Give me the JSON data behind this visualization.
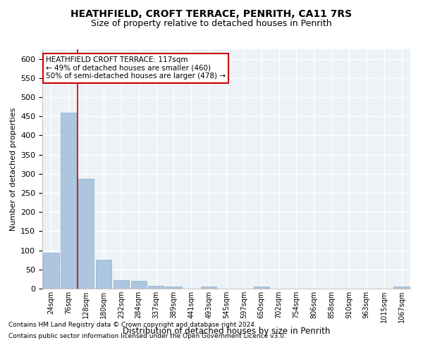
{
  "title": "HEATHFIELD, CROFT TERRACE, PENRITH, CA11 7RS",
  "subtitle": "Size of property relative to detached houses in Penrith",
  "xlabel": "Distribution of detached houses by size in Penrith",
  "ylabel": "Number of detached properties",
  "categories": [
    "24sqm",
    "76sqm",
    "128sqm",
    "180sqm",
    "232sqm",
    "284sqm",
    "337sqm",
    "389sqm",
    "441sqm",
    "493sqm",
    "545sqm",
    "597sqm",
    "650sqm",
    "702sqm",
    "754sqm",
    "806sqm",
    "858sqm",
    "910sqm",
    "963sqm",
    "1015sqm",
    "1067sqm"
  ],
  "values": [
    93,
    460,
    287,
    76,
    22,
    20,
    8,
    6,
    0,
    5,
    0,
    0,
    5,
    0,
    0,
    0,
    0,
    0,
    0,
    0,
    5
  ],
  "bar_color": "#adc6e0",
  "bar_edge_color": "#8aafc8",
  "vline_x_index": 2,
  "vline_color": "#cc0000",
  "annotation_text": "HEATHFIELD CROFT TERRACE: 117sqm\n← 49% of detached houses are smaller (460)\n50% of semi-detached houses are larger (478) →",
  "annotation_box_facecolor": "#ffffff",
  "annotation_box_edgecolor": "#cc0000",
  "bg_color": "#edf2f7",
  "grid_color": "#ffffff",
  "ylim": [
    0,
    625
  ],
  "yticks": [
    0,
    50,
    100,
    150,
    200,
    250,
    300,
    350,
    400,
    450,
    500,
    550,
    600
  ],
  "footnote_line1": "Contains HM Land Registry data © Crown copyright and database right 2024.",
  "footnote_line2": "Contains public sector information licensed under the Open Government Licence v3.0."
}
